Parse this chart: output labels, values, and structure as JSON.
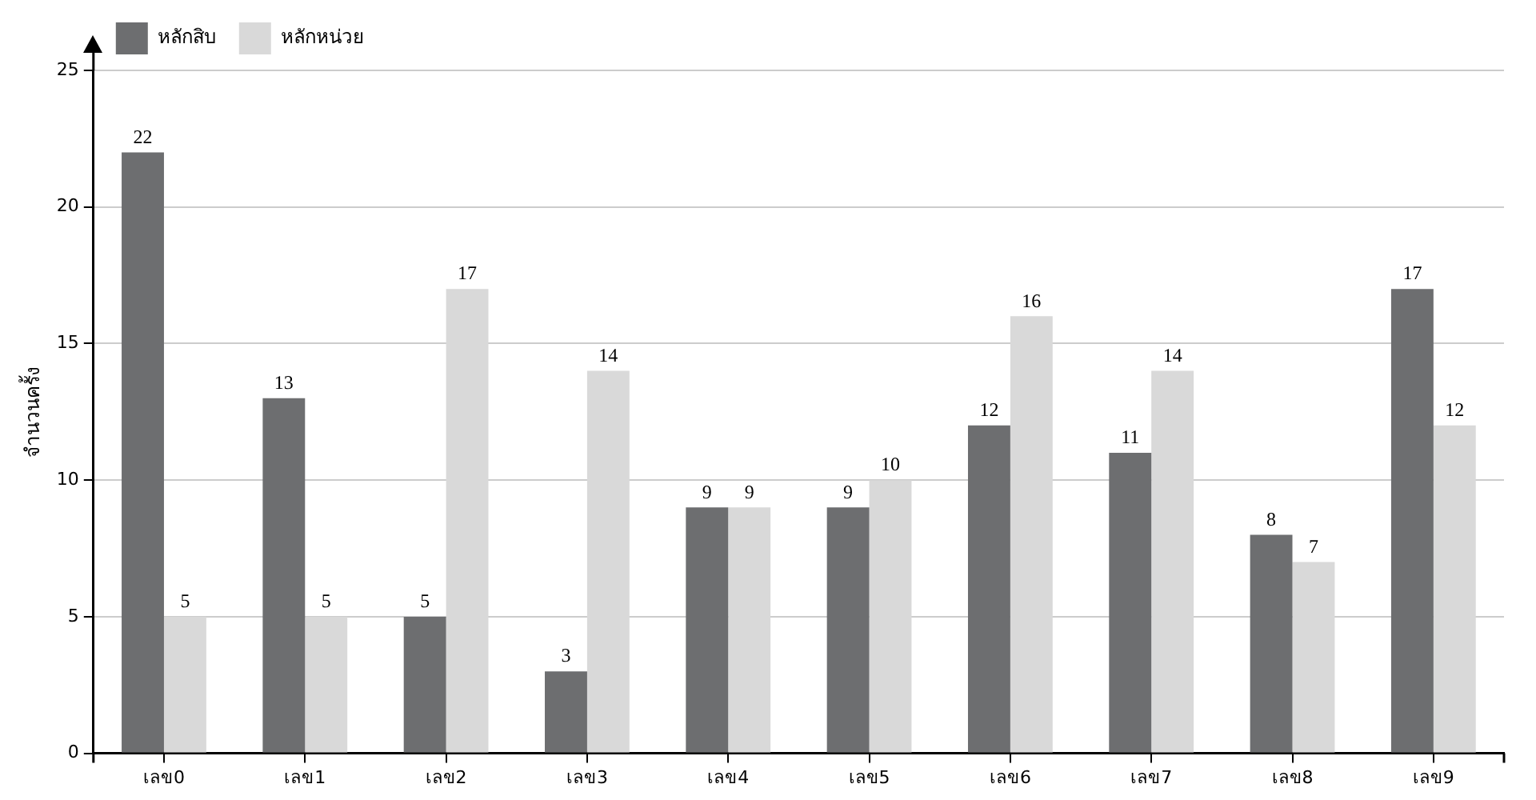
{
  "chart_data": {
    "type": "bar",
    "ylabel": "จำนวนครั้ง",
    "categories": [
      "เลข0",
      "เลข1",
      "เลข2",
      "เลข3",
      "เลข4",
      "เลข5",
      "เลข6",
      "เลข7",
      "เลข8",
      "เลข9"
    ],
    "series": [
      {
        "name": "หลักสิบ",
        "color": "#6d6e70",
        "values": [
          22,
          13,
          5,
          3,
          9,
          9,
          12,
          11,
          8,
          17
        ]
      },
      {
        "name": "หลักหน่วย",
        "color": "#d9d9d9",
        "values": [
          5,
          5,
          17,
          14,
          9,
          10,
          16,
          14,
          7,
          12
        ]
      }
    ],
    "ylim": [
      0,
      25
    ],
    "yticks": [
      0,
      5,
      10,
      15,
      20,
      25
    ],
    "grid": "y",
    "legend": "top left",
    "data_labels": true
  }
}
